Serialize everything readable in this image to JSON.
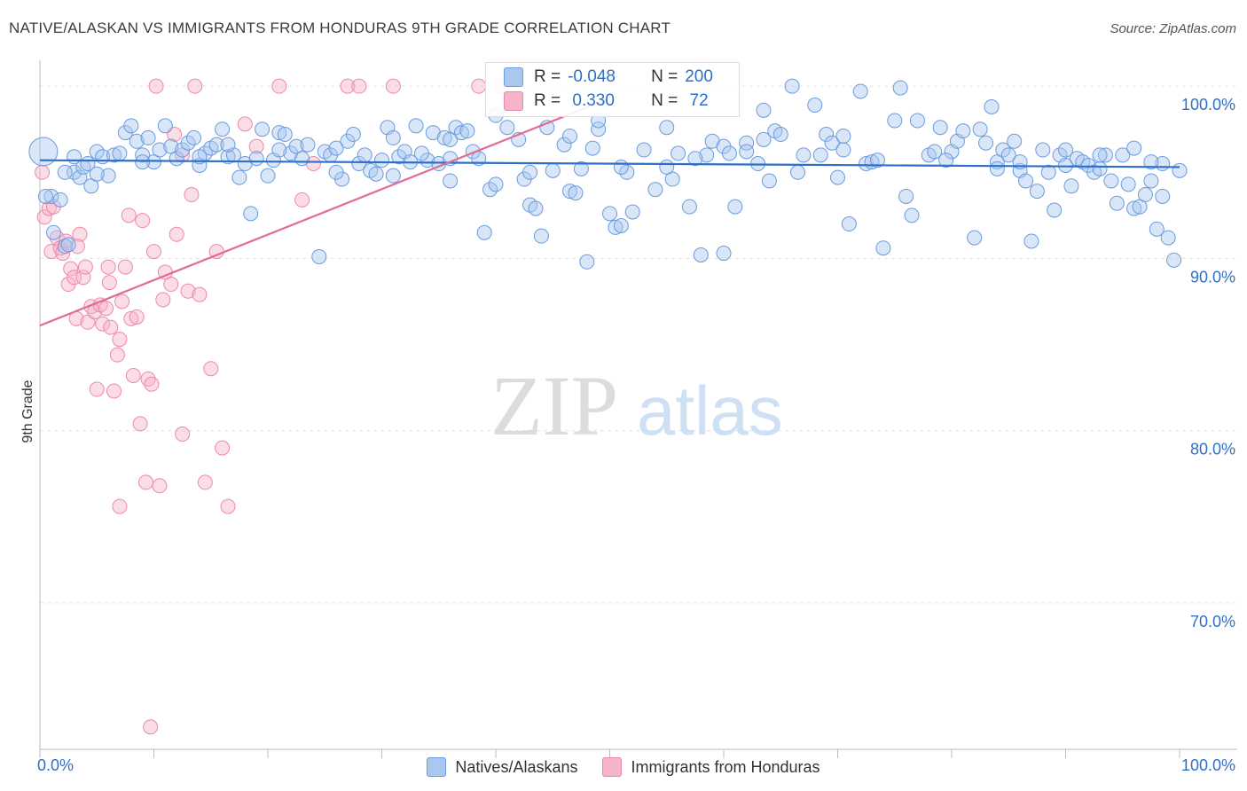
{
  "header": {
    "title": "NATIVE/ALASKAN VS IMMIGRANTS FROM HONDURAS 9TH GRADE CORRELATION CHART",
    "source": "Source: ZipAtlas.com"
  },
  "watermark": {
    "zip": "ZIP",
    "atlas": "atlas"
  },
  "legend_box": {
    "rows": [
      {
        "r_label": "R =",
        "r_value": "-0.048",
        "n_label": "N =",
        "n_value": "200",
        "color": "#a8c8f0"
      },
      {
        "r_label": "R =",
        "r_value": " 0.330",
        "n_label": "N =",
        "n_value": " 72",
        "color": "#f7b3c8"
      }
    ]
  },
  "bottom_legend": {
    "items": [
      {
        "label": "Natives/Alaskans",
        "color": "#a8c8f0"
      },
      {
        "label": "Immigrants from Honduras",
        "color": "#f7b3c8"
      }
    ]
  },
  "chart_data": {
    "type": "scatter",
    "title": "NATIVE/ALASKAN VS IMMIGRANTS FROM HONDURAS 9TH GRADE CORRELATION CHART",
    "ylabel": "9th Grade",
    "xlabel": "",
    "x_tick_labels": [
      "0.0%",
      "100.0%"
    ],
    "y_tick_labels": [
      "100.0%",
      "90.0%",
      "80.0%",
      "70.0%"
    ],
    "y_ticks": [
      100,
      90,
      80,
      70
    ],
    "xlim": [
      0,
      100
    ],
    "ylim": [
      61.5,
      101.5
    ],
    "grid": true,
    "colors": {
      "blue": "#6a9be0",
      "blue_fill": "rgba(168,200,240,0.45)",
      "pink": "#ee88aa",
      "pink_fill": "rgba(247,179,200,0.45)",
      "blue_line": "#2e6fc7",
      "pink_line": "#e26b96"
    },
    "series": [
      {
        "name": "Natives/Alaskans",
        "r": -0.048,
        "n": 200,
        "trend": {
          "x": [
            0,
            100
          ],
          "y": [
            95.7,
            95.3
          ]
        },
        "points": [
          [
            0.3,
            96.2
          ],
          [
            1.0,
            93.6
          ],
          [
            1.2,
            91.5
          ],
          [
            1.8,
            93.4
          ],
          [
            2.2,
            90.7
          ],
          [
            2.5,
            90.8
          ],
          [
            3.0,
            95.0
          ],
          [
            3.5,
            94.7
          ],
          [
            3.8,
            95.3
          ],
          [
            4.2,
            95.5
          ],
          [
            4.5,
            94.2
          ],
          [
            5.0,
            96.2
          ],
          [
            5.5,
            95.9
          ],
          [
            6.0,
            94.8
          ],
          [
            6.5,
            96.0
          ],
          [
            7.0,
            96.1
          ],
          [
            7.5,
            97.3
          ],
          [
            8.0,
            97.7
          ],
          [
            8.5,
            96.8
          ],
          [
            9.0,
            96.0
          ],
          [
            9.5,
            97.0
          ],
          [
            10.0,
            95.6
          ],
          [
            10.5,
            96.3
          ],
          [
            11.0,
            97.7
          ],
          [
            11.5,
            96.5
          ],
          [
            12.0,
            95.8
          ],
          [
            12.5,
            96.3
          ],
          [
            13.0,
            96.7
          ],
          [
            13.5,
            97.0
          ],
          [
            14.0,
            95.4
          ],
          [
            14.5,
            96.1
          ],
          [
            15.0,
            96.4
          ],
          [
            15.5,
            96.6
          ],
          [
            16.0,
            97.5
          ],
          [
            16.5,
            95.9
          ],
          [
            17.0,
            96.0
          ],
          [
            17.5,
            94.7
          ],
          [
            18.0,
            95.5
          ],
          [
            18.5,
            92.6
          ],
          [
            19.0,
            95.8
          ],
          [
            20.0,
            94.8
          ],
          [
            20.5,
            95.7
          ],
          [
            21.0,
            97.3
          ],
          [
            21.5,
            97.2
          ],
          [
            22.0,
            96.1
          ],
          [
            22.5,
            96.5
          ],
          [
            23.0,
            95.8
          ],
          [
            23.5,
            96.6
          ],
          [
            24.5,
            90.1
          ],
          [
            25.0,
            96.2
          ],
          [
            25.5,
            96.0
          ],
          [
            26.0,
            96.4
          ],
          [
            26.5,
            94.6
          ],
          [
            27.0,
            96.8
          ],
          [
            27.5,
            97.2
          ],
          [
            28.0,
            95.5
          ],
          [
            28.5,
            96.0
          ],
          [
            29.0,
            95.1
          ],
          [
            29.5,
            94.9
          ],
          [
            30.0,
            95.7
          ],
          [
            30.5,
            97.6
          ],
          [
            31.0,
            97.0
          ],
          [
            31.5,
            95.9
          ],
          [
            32.0,
            96.2
          ],
          [
            32.5,
            95.6
          ],
          [
            33.0,
            97.7
          ],
          [
            34.0,
            95.7
          ],
          [
            34.5,
            97.3
          ],
          [
            35.0,
            95.5
          ],
          [
            35.5,
            97.0
          ],
          [
            36.0,
            96.9
          ],
          [
            36.5,
            97.6
          ],
          [
            37.0,
            97.3
          ],
          [
            37.5,
            97.4
          ],
          [
            38.0,
            96.2
          ],
          [
            39.0,
            91.5
          ],
          [
            39.5,
            94.0
          ],
          [
            40.0,
            94.3
          ],
          [
            41.0,
            97.6
          ],
          [
            42.0,
            96.9
          ],
          [
            42.5,
            94.6
          ],
          [
            43.0,
            93.1
          ],
          [
            43.5,
            92.9
          ],
          [
            44.0,
            91.3
          ],
          [
            44.5,
            97.6
          ],
          [
            45.0,
            95.1
          ],
          [
            46.0,
            96.6
          ],
          [
            46.5,
            93.9
          ],
          [
            47.0,
            93.8
          ],
          [
            47.5,
            95.2
          ],
          [
            48.0,
            89.8
          ],
          [
            49.0,
            97.5
          ],
          [
            50.0,
            92.6
          ],
          [
            50.5,
            91.8
          ],
          [
            51.0,
            91.9
          ],
          [
            51.5,
            95.0
          ],
          [
            52.0,
            92.7
          ],
          [
            53.0,
            96.3
          ],
          [
            54.0,
            94.0
          ],
          [
            55.0,
            97.6
          ],
          [
            55.5,
            94.6
          ],
          [
            56.0,
            96.1
          ],
          [
            57.0,
            93.0
          ],
          [
            58.0,
            90.2
          ],
          [
            58.5,
            96.0
          ],
          [
            59.0,
            96.8
          ],
          [
            60.0,
            96.5
          ],
          [
            60.5,
            96.1
          ],
          [
            61.0,
            93.0
          ],
          [
            62.0,
            96.7
          ],
          [
            63.0,
            95.5
          ],
          [
            63.5,
            96.9
          ],
          [
            64.0,
            94.5
          ],
          [
            64.5,
            97.4
          ],
          [
            65.0,
            97.2
          ],
          [
            66.0,
            100.0
          ],
          [
            66.5,
            95.0
          ],
          [
            67.0,
            96.0
          ],
          [
            68.0,
            98.9
          ],
          [
            69.0,
            97.2
          ],
          [
            69.5,
            96.7
          ],
          [
            70.0,
            94.7
          ],
          [
            70.5,
            97.1
          ],
          [
            71.0,
            92.0
          ],
          [
            72.0,
            99.7
          ],
          [
            72.5,
            95.5
          ],
          [
            73.0,
            95.6
          ],
          [
            74.0,
            90.6
          ],
          [
            75.0,
            98.0
          ],
          [
            75.5,
            99.9
          ],
          [
            76.0,
            93.6
          ],
          [
            76.5,
            92.5
          ],
          [
            77.0,
            98.0
          ],
          [
            78.0,
            96.0
          ],
          [
            78.5,
            96.2
          ],
          [
            79.0,
            97.6
          ],
          [
            80.0,
            96.2
          ],
          [
            80.5,
            96.8
          ],
          [
            81.0,
            97.4
          ],
          [
            82.0,
            91.2
          ],
          [
            82.5,
            97.5
          ],
          [
            83.0,
            96.7
          ],
          [
            83.5,
            98.8
          ],
          [
            84.0,
            95.6
          ],
          [
            84.5,
            96.3
          ],
          [
            85.0,
            96.0
          ],
          [
            85.5,
            96.8
          ],
          [
            86.0,
            95.1
          ],
          [
            86.5,
            94.5
          ],
          [
            87.0,
            91.0
          ],
          [
            87.5,
            93.9
          ],
          [
            88.0,
            96.3
          ],
          [
            88.5,
            95.0
          ],
          [
            89.0,
            92.8
          ],
          [
            89.5,
            96.0
          ],
          [
            90.0,
            95.4
          ],
          [
            90.5,
            94.2
          ],
          [
            91.0,
            95.8
          ],
          [
            91.5,
            95.6
          ],
          [
            92.0,
            95.4
          ],
          [
            92.5,
            95.0
          ],
          [
            93.0,
            95.2
          ],
          [
            93.5,
            96.0
          ],
          [
            94.0,
            94.5
          ],
          [
            94.5,
            93.2
          ],
          [
            95.0,
            96.0
          ],
          [
            95.5,
            94.3
          ],
          [
            96.0,
            92.9
          ],
          [
            96.5,
            93.0
          ],
          [
            97.0,
            93.7
          ],
          [
            97.5,
            94.5
          ],
          [
            98.0,
            91.7
          ],
          [
            98.5,
            95.5
          ],
          [
            99.0,
            91.2
          ],
          [
            99.5,
            89.9
          ],
          [
            100.0,
            95.1
          ],
          [
            3.0,
            95.9
          ],
          [
            14.0,
            95.9
          ],
          [
            19.5,
            97.5
          ],
          [
            26.0,
            95.0
          ],
          [
            31.0,
            94.8
          ],
          [
            38.5,
            95.8
          ],
          [
            43.0,
            95.0
          ],
          [
            51.0,
            95.3
          ],
          [
            57.5,
            95.8
          ],
          [
            62.0,
            96.2
          ],
          [
            68.5,
            96.0
          ],
          [
            73.5,
            95.7
          ],
          [
            79.5,
            95.7
          ],
          [
            86.0,
            95.6
          ],
          [
            90.0,
            96.3
          ],
          [
            93.0,
            96.0
          ],
          [
            96.0,
            96.4
          ],
          [
            48.5,
            96.4
          ],
          [
            33.5,
            96.1
          ],
          [
            21.0,
            96.3
          ],
          [
            9.0,
            95.6
          ],
          [
            5.0,
            94.9
          ],
          [
            60.0,
            90.3
          ],
          [
            40.0,
            98.3
          ],
          [
            46.5,
            97.1
          ],
          [
            63.5,
            98.6
          ],
          [
            70.5,
            96.3
          ],
          [
            84.0,
            95.2
          ],
          [
            97.5,
            95.6
          ],
          [
            55.0,
            95.3
          ],
          [
            36.0,
            94.5
          ],
          [
            16.5,
            96.6
          ],
          [
            2.2,
            95.0
          ],
          [
            98.5,
            93.6
          ],
          [
            49.0,
            98.0
          ],
          [
            36.0,
            95.8
          ],
          [
            0.5,
            93.6
          ]
        ]
      },
      {
        "name": "Immigrants from Honduras",
        "r": 0.33,
        "n": 72,
        "trend": {
          "x": [
            0,
            50
          ],
          "y": [
            86.1,
            99.3
          ]
        },
        "points": [
          [
            0.2,
            95.0
          ],
          [
            0.4,
            92.4
          ],
          [
            0.8,
            92.9
          ],
          [
            1.0,
            90.4
          ],
          [
            1.5,
            91.2
          ],
          [
            1.8,
            90.6
          ],
          [
            2.0,
            90.3
          ],
          [
            2.3,
            91.0
          ],
          [
            2.5,
            88.5
          ],
          [
            2.7,
            89.4
          ],
          [
            3.0,
            88.9
          ],
          [
            3.2,
            86.5
          ],
          [
            3.5,
            91.4
          ],
          [
            3.8,
            88.9
          ],
          [
            4.0,
            89.5
          ],
          [
            4.2,
            86.3
          ],
          [
            4.5,
            87.2
          ],
          [
            4.8,
            86.9
          ],
          [
            5.0,
            82.4
          ],
          [
            5.3,
            87.3
          ],
          [
            5.5,
            86.2
          ],
          [
            5.8,
            87.1
          ],
          [
            6.0,
            89.5
          ],
          [
            6.2,
            86.0
          ],
          [
            6.5,
            82.3
          ],
          [
            6.8,
            84.4
          ],
          [
            7.0,
            85.3
          ],
          [
            7.2,
            87.5
          ],
          [
            7.5,
            89.5
          ],
          [
            7.8,
            92.5
          ],
          [
            8.0,
            86.5
          ],
          [
            8.2,
            83.2
          ],
          [
            8.5,
            86.6
          ],
          [
            8.8,
            80.4
          ],
          [
            9.0,
            92.2
          ],
          [
            9.3,
            77.0
          ],
          [
            9.5,
            83.0
          ],
          [
            9.8,
            82.7
          ],
          [
            10.0,
            90.4
          ],
          [
            10.2,
            100.0
          ],
          [
            10.5,
            76.8
          ],
          [
            10.8,
            87.6
          ],
          [
            11.0,
            89.2
          ],
          [
            11.5,
            88.5
          ],
          [
            12.0,
            91.4
          ],
          [
            12.5,
            96.0
          ],
          [
            13.0,
            88.1
          ],
          [
            13.3,
            93.7
          ],
          [
            13.6,
            100.0
          ],
          [
            14.0,
            87.9
          ],
          [
            14.5,
            77.0
          ],
          [
            15.0,
            83.6
          ],
          [
            15.5,
            90.4
          ],
          [
            16.0,
            79.0
          ],
          [
            16.5,
            75.6
          ],
          [
            18.0,
            97.8
          ],
          [
            19.0,
            96.5
          ],
          [
            21.0,
            100.0
          ],
          [
            23.0,
            93.4
          ],
          [
            24.0,
            95.5
          ],
          [
            27.0,
            100.0
          ],
          [
            28.0,
            100.0
          ],
          [
            31.0,
            100.0
          ],
          [
            38.5,
            100.0
          ],
          [
            40.5,
            100.0
          ],
          [
            12.5,
            79.8
          ],
          [
            9.7,
            62.8
          ],
          [
            7.0,
            75.6
          ],
          [
            11.8,
            97.2
          ],
          [
            1.2,
            93.0
          ],
          [
            3.3,
            90.7
          ],
          [
            6.1,
            88.6
          ]
        ]
      }
    ]
  }
}
